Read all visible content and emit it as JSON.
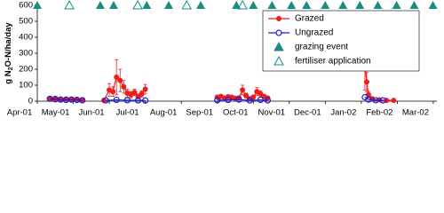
{
  "chart_data": {
    "type": "line",
    "y_label": [
      "g N",
      "2",
      "O-N/ha/day"
    ],
    "xlim": [
      0,
      11.1
    ],
    "xticks": [
      {
        "value": 0,
        "label": "Apr-01"
      },
      {
        "value": 1,
        "label": "May-01"
      },
      {
        "value": 2,
        "label": "Jun-01"
      },
      {
        "value": 3,
        "label": "Jul-01"
      },
      {
        "value": 4,
        "label": "Aug-01"
      },
      {
        "value": 5,
        "label": "Sep-01"
      },
      {
        "value": 6,
        "label": "Oct-01"
      },
      {
        "value": 7,
        "label": "Nov-01"
      },
      {
        "value": 8,
        "label": "Dec-01"
      },
      {
        "value": 9,
        "label": "Jan-02"
      },
      {
        "value": 10,
        "label": "Feb-02"
      },
      {
        "value": 11,
        "label": "Mar-02"
      }
    ],
    "ylim": [
      0,
      600
    ],
    "yticks": [
      0,
      100,
      200,
      300,
      400,
      500,
      600
    ],
    "series": [
      {
        "name": "Grazed",
        "color": "#ee1c1c",
        "marker": "circle",
        "line": true,
        "x": [
          0.35,
          0.5,
          0.65,
          0.8,
          0.95,
          1.1,
          1.25,
          1.5,
          1.85,
          2.0,
          2.1,
          2.2,
          2.3,
          2.4,
          2.5,
          2.6,
          2.7,
          2.8,
          2.9,
          3.0,
          4.0,
          5.0,
          5.1,
          5.2,
          5.3,
          5.4,
          5.5,
          5.6,
          5.7,
          5.8,
          5.9,
          6.0,
          6.1,
          6.2,
          6.3,
          6.4,
          8.5,
          9.1,
          9.15,
          9.2,
          9.3,
          9.5,
          9.7,
          9.9
        ],
        "values": [
          15,
          18,
          12,
          14,
          10,
          12,
          8,
          null,
          5,
          70,
          60,
          150,
          130,
          90,
          50,
          40,
          55,
          30,
          45,
          75,
          null,
          25,
          30,
          20,
          28,
          25,
          18,
          20,
          70,
          35,
          15,
          25,
          60,
          45,
          30,
          20,
          null,
          230,
          120,
          40,
          15,
          8,
          5,
          5
        ],
        "errors": [
          8,
          10,
          6,
          8,
          5,
          6,
          4,
          null,
          3,
          40,
          30,
          110,
          70,
          40,
          25,
          20,
          20,
          15,
          20,
          30,
          null,
          10,
          12,
          8,
          10,
          10,
          8,
          8,
          30,
          15,
          6,
          10,
          25,
          20,
          12,
          8,
          null,
          160,
          60,
          20,
          8,
          4,
          3,
          3
        ]
      },
      {
        "name": "Ungrazed",
        "color": "#1c1ccc",
        "marker": "open-circle",
        "line": true,
        "x": [
          0.35,
          0.5,
          0.65,
          0.8,
          0.95,
          1.1,
          1.25,
          1.5,
          1.9,
          2.2,
          2.5,
          2.8,
          3.0,
          4.0,
          5.0,
          5.3,
          5.6,
          5.9,
          6.2,
          6.4,
          8.5,
          9.1,
          9.2,
          9.4,
          9.6
        ],
        "values": [
          15,
          12,
          10,
          8,
          10,
          8,
          6,
          null,
          5,
          8,
          6,
          5,
          4,
          null,
          6,
          8,
          10,
          5,
          8,
          5,
          null,
          25,
          10,
          6,
          5
        ]
      },
      {
        "name": "grazing event",
        "color": "#1a8c80",
        "marker": "triangle",
        "line": false,
        "x": [
          0,
          1.75,
          2.12,
          3.04,
          3.65,
          4.54,
          5.53,
          6.0,
          6.52,
          7.06,
          7.48,
          8.0,
          8.49,
          8.96,
          9.46,
          9.98,
          10.47,
          10.99
        ],
        "values": [
          600,
          600,
          600,
          600,
          600,
          600,
          600,
          600,
          600,
          600,
          600,
          600,
          600,
          600,
          600,
          600,
          600,
          600
        ]
      },
      {
        "name": "fertiliser application",
        "color": "#1a8c80",
        "marker": "open-triangle",
        "line": false,
        "x": [
          0.89,
          2.79,
          4.15,
          5.7
        ],
        "values": [
          600,
          600,
          600,
          600
        ]
      }
    ]
  }
}
